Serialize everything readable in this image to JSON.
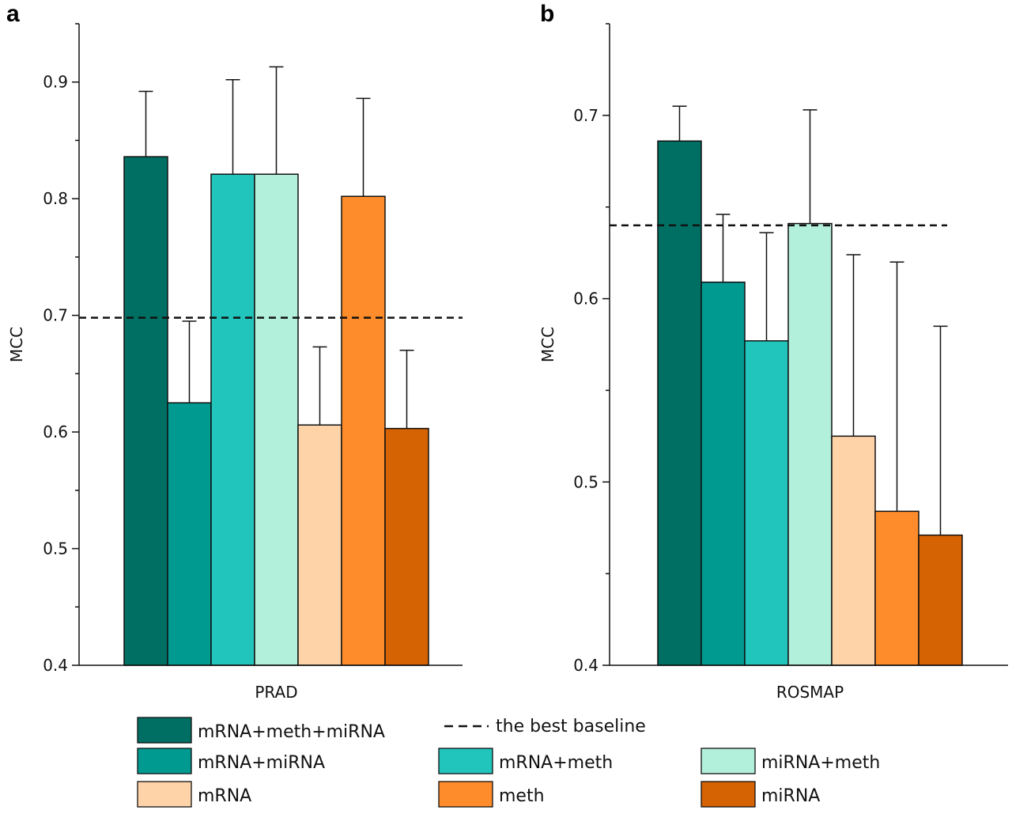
{
  "legend": {
    "baseline_label": "the best baseline",
    "items": [
      {
        "name": "mRNA+meth+miRNA",
        "color": "#006F63"
      },
      {
        "name": "mRNA+miRNA",
        "color": "#009A91"
      },
      {
        "name": "mRNA+meth",
        "color": "#22C5BC"
      },
      {
        "name": "miRNA+meth",
        "color": "#B3F0DC"
      },
      {
        "name": "mRNA",
        "color": "#FED3A8"
      },
      {
        "name": "meth",
        "color": "#FF8C2A"
      },
      {
        "name": "miRNA",
        "color": "#D56203"
      }
    ]
  },
  "chart_data": [
    {
      "type": "bar",
      "panel": "a",
      "categories": [
        "PRAD"
      ],
      "xlabel": "PRAD",
      "ylabel": "MCC",
      "ylim": [
        0.4,
        0.95
      ],
      "yticks": [
        0.4,
        0.5,
        0.6,
        0.7,
        0.8,
        0.9
      ],
      "ytick_labels": [
        "0.4",
        "0.5",
        "0.6",
        "0.7",
        "0.8",
        "0.9"
      ],
      "baseline": 0.698,
      "series": [
        {
          "name": "mRNA+meth+miRNA",
          "values": [
            0.836
          ],
          "error": [
            0.056
          ]
        },
        {
          "name": "mRNA+miRNA",
          "values": [
            0.625
          ],
          "error": [
            0.07
          ]
        },
        {
          "name": "mRNA+meth",
          "values": [
            0.821
          ],
          "error": [
            0.081
          ]
        },
        {
          "name": "miRNA+meth",
          "values": [
            0.821
          ],
          "error": [
            0.092
          ]
        },
        {
          "name": "mRNA",
          "values": [
            0.606
          ],
          "error": [
            0.067
          ]
        },
        {
          "name": "meth",
          "values": [
            0.802
          ],
          "error": [
            0.084
          ]
        },
        {
          "name": "miRNA",
          "values": [
            0.603
          ],
          "error": [
            0.067
          ]
        }
      ]
    },
    {
      "type": "bar",
      "panel": "b",
      "categories": [
        "ROSMAP"
      ],
      "xlabel": "ROSMAP",
      "ylabel": "MCC",
      "ylim": [
        0.4,
        0.75
      ],
      "yticks": [
        0.4,
        0.5,
        0.6,
        0.7
      ],
      "ytick_labels": [
        "0.4",
        "0.5",
        "0.6",
        "0.7"
      ],
      "baseline": 0.64,
      "series": [
        {
          "name": "mRNA+meth+miRNA",
          "values": [
            0.686
          ],
          "error": [
            0.019
          ]
        },
        {
          "name": "mRNA+miRNA",
          "values": [
            0.609
          ],
          "error": [
            0.037
          ]
        },
        {
          "name": "mRNA+meth",
          "values": [
            0.577
          ],
          "error": [
            0.059
          ]
        },
        {
          "name": "miRNA+meth",
          "values": [
            0.641
          ],
          "error": [
            0.062
          ]
        },
        {
          "name": "mRNA",
          "values": [
            0.525
          ],
          "error": [
            0.099
          ]
        },
        {
          "name": "meth",
          "values": [
            0.484
          ],
          "error": [
            0.136
          ]
        },
        {
          "name": "miRNA",
          "values": [
            0.471
          ],
          "error": [
            0.114
          ]
        }
      ]
    }
  ]
}
